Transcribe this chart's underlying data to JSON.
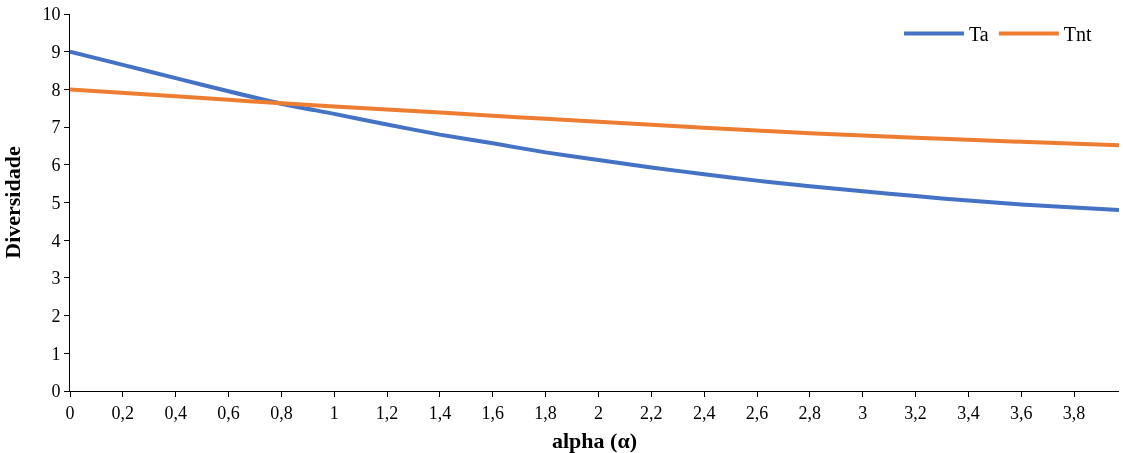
{
  "chart_data": {
    "type": "line",
    "xlabel": "alpha (α)",
    "ylabel": "Diversidade",
    "xlim": [
      0,
      3.97
    ],
    "xticks": [
      0,
      {
        "value": 0.2,
        "label": "0,2"
      },
      {
        "value": 0.4,
        "label": "0,4"
      },
      {
        "value": 0.6,
        "label": "0,6"
      },
      {
        "value": 0.8,
        "label": "0,8"
      },
      1,
      {
        "value": 1.2,
        "label": "1,2"
      },
      {
        "value": 1.4,
        "label": "1,4"
      },
      {
        "value": 1.6,
        "label": "1,6"
      },
      {
        "value": 1.8,
        "label": "1,8"
      },
      2,
      {
        "value": 2.2,
        "label": "2,2"
      },
      {
        "value": 2.4,
        "label": "2,4"
      },
      {
        "value": 2.6,
        "label": "2,6"
      },
      {
        "value": 2.8,
        "label": "2,8"
      },
      3,
      {
        "value": 3.2,
        "label": "3,2"
      },
      {
        "value": 3.4,
        "label": "3,4"
      },
      {
        "value": 3.6,
        "label": "3,6"
      },
      {
        "value": 3.8,
        "label": "3,8"
      }
    ],
    "ylim": [
      0,
      10
    ],
    "yticks": [
      0,
      1,
      2,
      3,
      4,
      5,
      6,
      7,
      8,
      9,
      10
    ],
    "grid": false,
    "legend": "top right",
    "marker": "none",
    "line_style": "solid",
    "series": [
      {
        "name": "Ta",
        "color": "#4472c4",
        "x": [
          0,
          0.2,
          0.4,
          0.6,
          0.8,
          1,
          1.2,
          1.4,
          1.6,
          1.8,
          2,
          2.2,
          2.4,
          2.6,
          2.8,
          3,
          3.2,
          3.4,
          3.6,
          3.8,
          3.97
        ],
        "values": [
          9.0,
          8.65,
          8.3,
          7.95,
          7.62,
          7.35,
          7.07,
          6.8,
          6.57,
          6.33,
          6.13,
          5.93,
          5.75,
          5.58,
          5.43,
          5.3,
          5.17,
          5.05,
          4.95,
          4.87,
          4.8
        ]
      },
      {
        "name": "Tnt",
        "color": "#ed7d31",
        "x": [
          0,
          0.4,
          0.8,
          1.2,
          1.6,
          2,
          2.4,
          2.8,
          3.2,
          3.6,
          3.97
        ],
        "values": [
          8.0,
          7.82,
          7.63,
          7.47,
          7.3,
          7.14,
          6.98,
          6.84,
          6.72,
          6.61,
          6.52
        ]
      }
    ]
  }
}
